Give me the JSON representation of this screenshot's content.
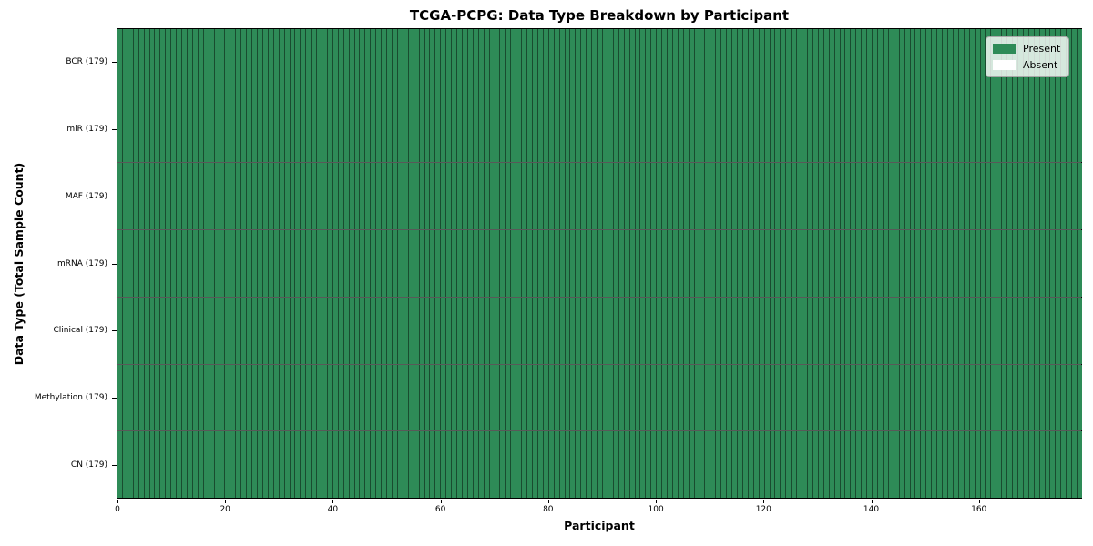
{
  "title": "TCGA-PCPG: Data Type Breakdown by Participant",
  "axes": {
    "xlabel": "Participant",
    "ylabel": "Data Type (Total Sample Count)"
  },
  "legend": {
    "entries": [
      {
        "label": "Present",
        "color": "#2e8b57"
      },
      {
        "label": "Absent",
        "color": "#ffffff"
      }
    ],
    "position": "upper right"
  },
  "colors": {
    "present": "#2e8b57",
    "absent": "#ffffff",
    "cell_edge": "rgba(0,0,0,0.45)",
    "row_divider": "rgba(0,0,0,0.65)",
    "plot_border": "#000000"
  },
  "chart_data": {
    "type": "heatmap",
    "title": "TCGA-PCPG: Data Type Breakdown by Participant",
    "xlabel": "Participant",
    "ylabel": "Data Type (Total Sample Count)",
    "n_participants": 179,
    "xlim": [
      0,
      179
    ],
    "x_ticks": [
      0,
      20,
      40,
      60,
      80,
      100,
      120,
      140,
      160
    ],
    "grid": false,
    "legend_position": "upper right",
    "rows": [
      {
        "label": "BCR (179)",
        "data_type": "BCR",
        "total_samples": 179,
        "present_count": 179,
        "absent_count": 0
      },
      {
        "label": "miR (179)",
        "data_type": "miR",
        "total_samples": 179,
        "present_count": 179,
        "absent_count": 0
      },
      {
        "label": "MAF (179)",
        "data_type": "MAF",
        "total_samples": 179,
        "present_count": 179,
        "absent_count": 0
      },
      {
        "label": "mRNA (179)",
        "data_type": "mRNA",
        "total_samples": 179,
        "present_count": 179,
        "absent_count": 0
      },
      {
        "label": "Clinical (179)",
        "data_type": "Clinical",
        "total_samples": 179,
        "present_count": 179,
        "absent_count": 0
      },
      {
        "label": "Methylation (179)",
        "data_type": "Methylation",
        "total_samples": 179,
        "present_count": 179,
        "absent_count": 0
      },
      {
        "label": "CN (179)",
        "data_type": "CN",
        "total_samples": 179,
        "present_count": 179,
        "absent_count": 0
      }
    ]
  }
}
